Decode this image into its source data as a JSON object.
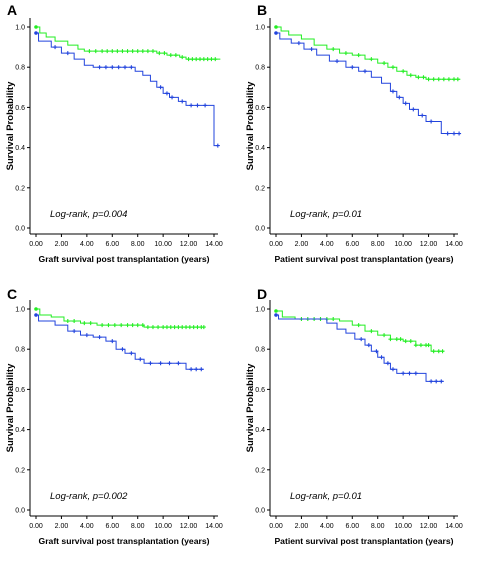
{
  "colors": {
    "series_green": "#22ee22",
    "series_blue": "#2244dd",
    "axis": "#000000"
  },
  "chart_data": [
    {
      "panel": "A",
      "type": "line",
      "xlabel": "Graft survival post transplantation (years)",
      "ylabel": "Survival Probability",
      "annotation": "Log-rank, p=0.004",
      "xlim": [
        0,
        14.5
      ],
      "ylim": [
        0,
        1.0
      ],
      "xticks": [
        "0.00",
        "2.00",
        "4.00",
        "6.00",
        "8.00",
        "10.00",
        "12.00",
        "14.00"
      ],
      "yticks": [
        "0.0",
        "0.2",
        "0.4",
        "0.6",
        "0.8",
        "1.0"
      ],
      "series": [
        {
          "color": "green",
          "steps": [
            [
              0,
              1.0
            ],
            [
              0.3,
              0.97
            ],
            [
              0.8,
              0.95
            ],
            [
              1.5,
              0.93
            ],
            [
              2.5,
              0.91
            ],
            [
              3.3,
              0.89
            ],
            [
              3.8,
              0.88
            ],
            [
              9.5,
              0.87
            ],
            [
              10.3,
              0.86
            ],
            [
              11.3,
              0.85
            ],
            [
              11.8,
              0.84
            ],
            [
              14.5,
              0.84
            ]
          ],
          "censor": [
            4.2,
            4.7,
            5.2,
            5.6,
            6.0,
            6.4,
            6.8,
            7.2,
            7.6,
            8.0,
            8.4,
            8.8,
            9.2,
            9.7,
            10.1,
            10.6,
            11.0,
            11.5,
            12.0,
            12.3,
            12.6,
            12.9,
            13.2,
            13.5,
            13.8,
            14.1
          ]
        },
        {
          "color": "blue",
          "steps": [
            [
              0,
              0.97
            ],
            [
              0.2,
              0.93
            ],
            [
              1.2,
              0.9
            ],
            [
              2.0,
              0.87
            ],
            [
              3.0,
              0.84
            ],
            [
              3.8,
              0.81
            ],
            [
              4.5,
              0.8
            ],
            [
              7.8,
              0.78
            ],
            [
              8.4,
              0.76
            ],
            [
              9.0,
              0.73
            ],
            [
              9.5,
              0.7
            ],
            [
              10.0,
              0.67
            ],
            [
              10.5,
              0.65
            ],
            [
              11.2,
              0.63
            ],
            [
              11.8,
              0.61
            ],
            [
              14.0,
              0.41
            ],
            [
              14.3,
              0.41
            ]
          ],
          "censor": [
            1.5,
            2.5,
            5.0,
            5.5,
            6.0,
            6.5,
            7.0,
            7.5,
            9.8,
            10.3,
            10.7,
            11.5,
            12.2,
            12.7,
            13.3,
            14.3
          ]
        }
      ]
    },
    {
      "panel": "B",
      "type": "line",
      "xlabel": "Patient survival post transplantation (years)",
      "ylabel": "Survival Probability",
      "annotation": "Log-rank, p=0.01",
      "xlim": [
        0,
        14.5
      ],
      "ylim": [
        0,
        1.0
      ],
      "xticks": [
        "0.00",
        "2.00",
        "4.00",
        "6.00",
        "8.00",
        "10.00",
        "12.00",
        "14.00"
      ],
      "yticks": [
        "0.0",
        "0.2",
        "0.4",
        "0.6",
        "0.8",
        "1.0"
      ],
      "series": [
        {
          "color": "green",
          "steps": [
            [
              0,
              1.0
            ],
            [
              0.4,
              0.98
            ],
            [
              1.0,
              0.96
            ],
            [
              2.0,
              0.94
            ],
            [
              3.0,
              0.91
            ],
            [
              4.0,
              0.89
            ],
            [
              5.0,
              0.87
            ],
            [
              6.0,
              0.86
            ],
            [
              7.0,
              0.84
            ],
            [
              8.0,
              0.82
            ],
            [
              8.8,
              0.8
            ],
            [
              9.5,
              0.78
            ],
            [
              10.3,
              0.76
            ],
            [
              11.0,
              0.75
            ],
            [
              11.8,
              0.74
            ],
            [
              14.5,
              0.74
            ]
          ],
          "censor": [
            4.5,
            5.5,
            6.5,
            7.5,
            8.5,
            9.2,
            10.0,
            10.6,
            11.2,
            11.6,
            12.0,
            12.4,
            12.8,
            13.2,
            13.6,
            14.0,
            14.3
          ]
        },
        {
          "color": "blue",
          "steps": [
            [
              0,
              0.97
            ],
            [
              0.3,
              0.94
            ],
            [
              1.2,
              0.92
            ],
            [
              2.2,
              0.89
            ],
            [
              3.2,
              0.86
            ],
            [
              4.2,
              0.83
            ],
            [
              5.5,
              0.8
            ],
            [
              6.5,
              0.78
            ],
            [
              7.5,
              0.75
            ],
            [
              8.3,
              0.72
            ],
            [
              9.0,
              0.68
            ],
            [
              9.5,
              0.65
            ],
            [
              10.0,
              0.62
            ],
            [
              10.5,
              0.59
            ],
            [
              11.2,
              0.56
            ],
            [
              11.8,
              0.53
            ],
            [
              13.0,
              0.47
            ],
            [
              14.5,
              0.47
            ]
          ],
          "censor": [
            1.8,
            2.8,
            4.8,
            6.0,
            7.0,
            9.2,
            9.7,
            10.2,
            10.8,
            11.5,
            12.2,
            13.5,
            14.0,
            14.4
          ]
        }
      ]
    },
    {
      "panel": "C",
      "type": "line",
      "xlabel": "Graft survival post transplantation (years)",
      "ylabel": "Survival Probability",
      "annotation": "Log-rank, p=0.002",
      "xlim": [
        0,
        14.5
      ],
      "ylim": [
        0,
        1.0
      ],
      "xticks": [
        "0.00",
        "2.00",
        "4.00",
        "6.00",
        "8.00",
        "10.00",
        "12.00",
        "14.00"
      ],
      "yticks": [
        "0.0",
        "0.2",
        "0.4",
        "0.6",
        "0.8",
        "1.0"
      ],
      "series": [
        {
          "color": "green",
          "steps": [
            [
              0,
              1.0
            ],
            [
              0.3,
              0.97
            ],
            [
              1.2,
              0.96
            ],
            [
              2.2,
              0.94
            ],
            [
              3.5,
              0.93
            ],
            [
              4.8,
              0.92
            ],
            [
              7.0,
              0.92
            ],
            [
              8.5,
              0.91
            ],
            [
              10.0,
              0.91
            ],
            [
              13.2,
              0.91
            ]
          ],
          "censor": [
            2.5,
            3.0,
            3.8,
            4.3,
            5.2,
            5.7,
            6.2,
            6.7,
            7.2,
            7.6,
            8.0,
            8.4,
            8.8,
            9.2,
            9.6,
            10.0,
            10.3,
            10.6,
            10.9,
            11.2,
            11.5,
            11.8,
            12.1,
            12.4,
            12.7,
            13.0,
            13.2
          ]
        },
        {
          "color": "blue",
          "steps": [
            [
              0,
              0.97
            ],
            [
              0.2,
              0.94
            ],
            [
              1.5,
              0.92
            ],
            [
              2.5,
              0.89
            ],
            [
              3.5,
              0.87
            ],
            [
              4.5,
              0.86
            ],
            [
              5.5,
              0.84
            ],
            [
              6.3,
              0.8
            ],
            [
              7.0,
              0.78
            ],
            [
              7.8,
              0.75
            ],
            [
              8.5,
              0.73
            ],
            [
              11.8,
              0.7
            ],
            [
              13.2,
              0.7
            ]
          ],
          "censor": [
            3.0,
            4.0,
            5.0,
            6.0,
            6.8,
            7.5,
            8.2,
            9.0,
            9.8,
            10.5,
            11.2,
            12.2,
            12.6,
            13.0
          ]
        }
      ]
    },
    {
      "panel": "D",
      "type": "line",
      "xlabel": "Patient survival post transplantation (years)",
      "ylabel": "Survival Probability",
      "annotation": "Log-rank, p=0.01",
      "xlim": [
        0,
        14.5
      ],
      "ylim": [
        0,
        1.0
      ],
      "xticks": [
        "0.00",
        "2.00",
        "4.00",
        "6.00",
        "8.00",
        "10.00",
        "12.00",
        "14.00"
      ],
      "yticks": [
        "0.0",
        "0.2",
        "0.4",
        "0.6",
        "0.8",
        "1.0"
      ],
      "series": [
        {
          "color": "green",
          "steps": [
            [
              0,
              0.99
            ],
            [
              0.5,
              0.96
            ],
            [
              1.5,
              0.95
            ],
            [
              5.0,
              0.94
            ],
            [
              6.0,
              0.92
            ],
            [
              7.0,
              0.89
            ],
            [
              8.0,
              0.87
            ],
            [
              9.0,
              0.85
            ],
            [
              10.0,
              0.84
            ],
            [
              11.0,
              0.82
            ],
            [
              12.2,
              0.79
            ],
            [
              13.2,
              0.79
            ]
          ],
          "censor": [
            2.0,
            2.5,
            3.0,
            3.5,
            4.0,
            4.5,
            6.5,
            7.5,
            8.5,
            9.0,
            9.5,
            9.8,
            10.2,
            10.6,
            11.0,
            11.4,
            11.8,
            12.0,
            12.4,
            12.8,
            13.1
          ]
        },
        {
          "color": "blue",
          "steps": [
            [
              0,
              0.97
            ],
            [
              0.2,
              0.95
            ],
            [
              4.0,
              0.93
            ],
            [
              4.8,
              0.9
            ],
            [
              5.5,
              0.88
            ],
            [
              6.2,
              0.85
            ],
            [
              7.0,
              0.82
            ],
            [
              7.5,
              0.79
            ],
            [
              8.0,
              0.76
            ],
            [
              8.5,
              0.73
            ],
            [
              9.0,
              0.7
            ],
            [
              9.5,
              0.68
            ],
            [
              11.8,
              0.64
            ],
            [
              13.2,
              0.64
            ]
          ],
          "censor": [
            6.7,
            7.3,
            7.9,
            8.3,
            8.8,
            9.2,
            10.0,
            10.5,
            11.0,
            12.2,
            12.6,
            13.0
          ]
        }
      ]
    }
  ]
}
